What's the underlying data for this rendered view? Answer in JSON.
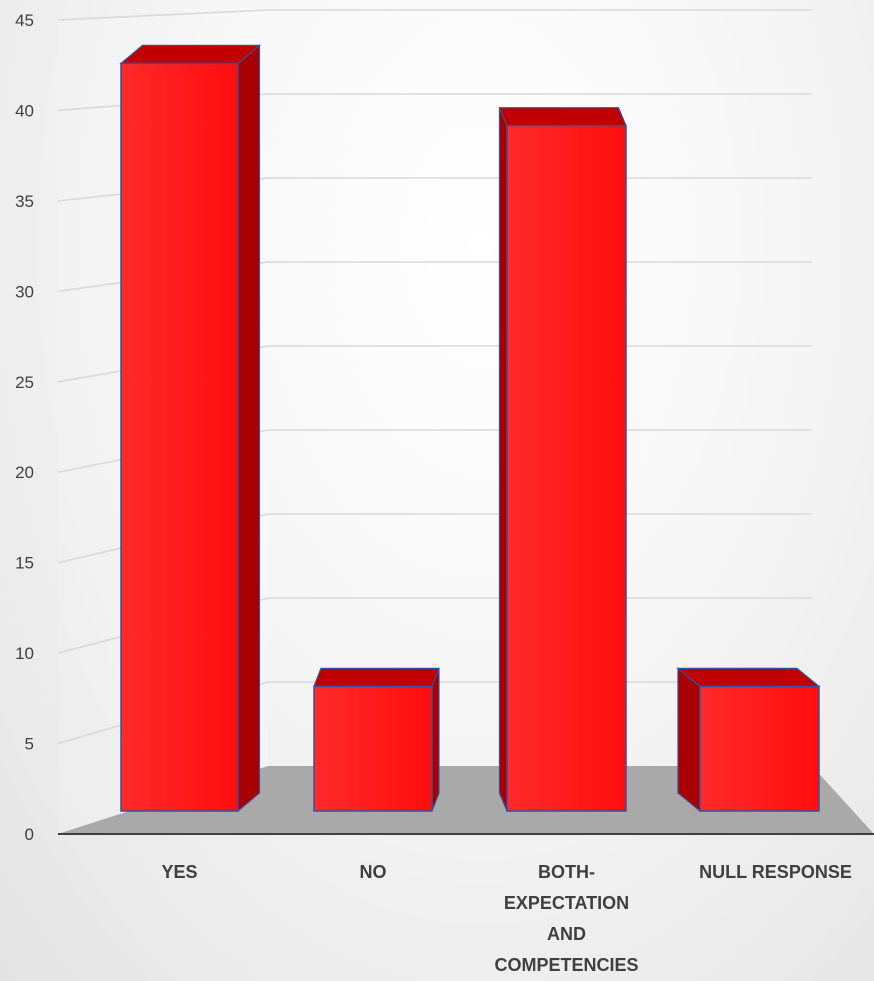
{
  "chart_data": {
    "type": "bar",
    "title": "",
    "xlabel": "",
    "ylabel": "",
    "categories": [
      [
        "YES"
      ],
      [
        "NO"
      ],
      [
        "BOTH-",
        "EXPECTATION",
        "AND",
        "COMPETENCIES"
      ],
      [
        "NULL RESPONSE"
      ]
    ],
    "values": [
      42,
      7,
      38.5,
      7
    ],
    "ylim": [
      0,
      45
    ],
    "yticks": [
      0,
      5,
      10,
      15,
      20,
      25,
      30,
      35,
      40,
      45
    ],
    "grid": true,
    "legend": "none",
    "colors": {
      "bar_front": "#ff1212",
      "bar_side": "#a80000",
      "bar_top": "#c00000",
      "bar_edge": "#3a4f9a",
      "floor": "#a9a9a9",
      "gridline": "#d9d9d9",
      "axis": "#404040"
    }
  }
}
